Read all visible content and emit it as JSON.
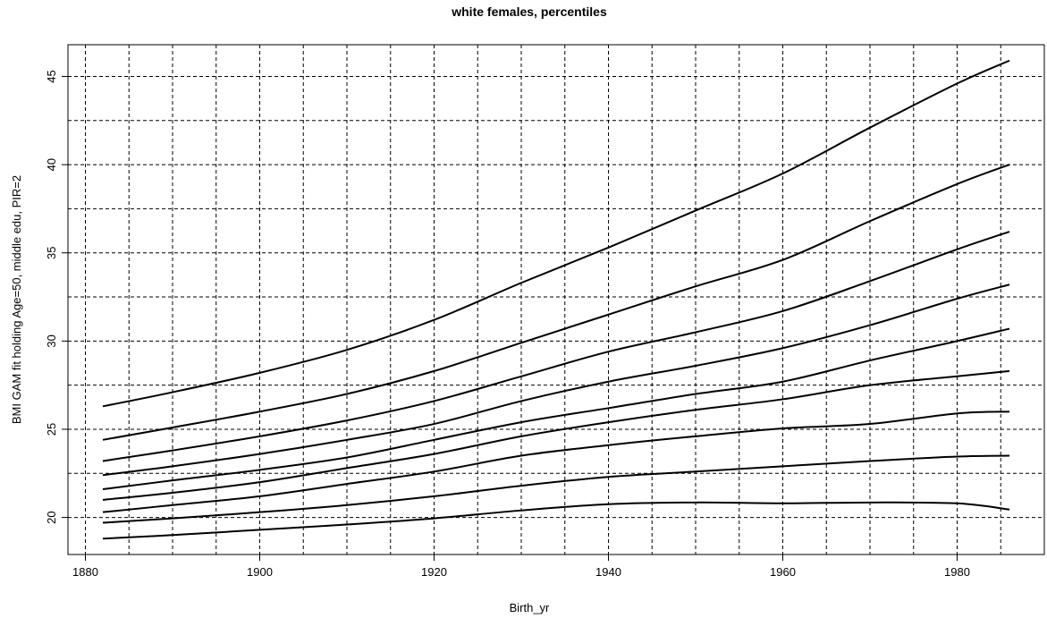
{
  "chart_data": {
    "type": "line",
    "title": "white females, percentiles",
    "xlabel": "Birth_yr",
    "ylabel": "BMI GAM fit holding Age=50, middle edu, PIR=2",
    "xlim": [
      1878,
      1990
    ],
    "ylim": [
      17.9,
      46.8
    ],
    "x_ticks": [
      1880,
      1900,
      1920,
      1940,
      1960,
      1980
    ],
    "y_ticks": [
      20,
      25,
      30,
      35,
      40,
      45
    ],
    "grid": true,
    "grid_x": [
      1880,
      1885,
      1890,
      1895,
      1900,
      1905,
      1910,
      1915,
      1920,
      1925,
      1930,
      1935,
      1940,
      1945,
      1950,
      1955,
      1960,
      1965,
      1970,
      1975,
      1980,
      1985
    ],
    "grid_y": [
      20,
      22.5,
      25,
      27.5,
      30,
      32.5,
      35,
      37.5,
      40,
      42.5,
      45
    ],
    "grid_style": "dashed",
    "legend": "none",
    "line_color": "#000000",
    "x": [
      1882,
      1890,
      1900,
      1910,
      1920,
      1930,
      1940,
      1950,
      1960,
      1970,
      1980,
      1986
    ],
    "series": [
      {
        "values": [
          18.8,
          19.0,
          19.3,
          19.6,
          19.95,
          20.4,
          20.75,
          20.85,
          20.8,
          20.85,
          20.8,
          20.45
        ]
      },
      {
        "values": [
          19.7,
          19.95,
          20.3,
          20.7,
          21.2,
          21.8,
          22.3,
          22.6,
          22.9,
          23.2,
          23.45,
          23.5
        ]
      },
      {
        "values": [
          20.3,
          20.7,
          21.2,
          21.9,
          22.6,
          23.5,
          24.1,
          24.6,
          25.05,
          25.3,
          25.9,
          26.0
        ]
      },
      {
        "values": [
          21.0,
          21.4,
          22.0,
          22.8,
          23.6,
          24.6,
          25.4,
          26.1,
          26.7,
          27.5,
          28.0,
          28.3
        ]
      },
      {
        "values": [
          21.6,
          22.1,
          22.7,
          23.4,
          24.4,
          25.4,
          26.2,
          27.0,
          27.7,
          28.9,
          30.0,
          30.7
        ]
      },
      {
        "values": [
          22.4,
          22.9,
          23.6,
          24.4,
          25.3,
          26.6,
          27.7,
          28.6,
          29.6,
          30.9,
          32.4,
          33.2
        ]
      },
      {
        "values": [
          23.2,
          23.8,
          24.6,
          25.5,
          26.6,
          28.0,
          29.4,
          30.5,
          31.7,
          33.4,
          35.2,
          36.2
        ]
      },
      {
        "values": [
          24.4,
          25.1,
          26.0,
          27.0,
          28.3,
          29.9,
          31.5,
          33.1,
          34.6,
          36.8,
          38.9,
          40.0
        ]
      },
      {
        "values": [
          26.3,
          27.1,
          28.2,
          29.5,
          31.2,
          33.3,
          35.3,
          37.4,
          39.5,
          42.1,
          44.6,
          45.9
        ]
      }
    ]
  }
}
